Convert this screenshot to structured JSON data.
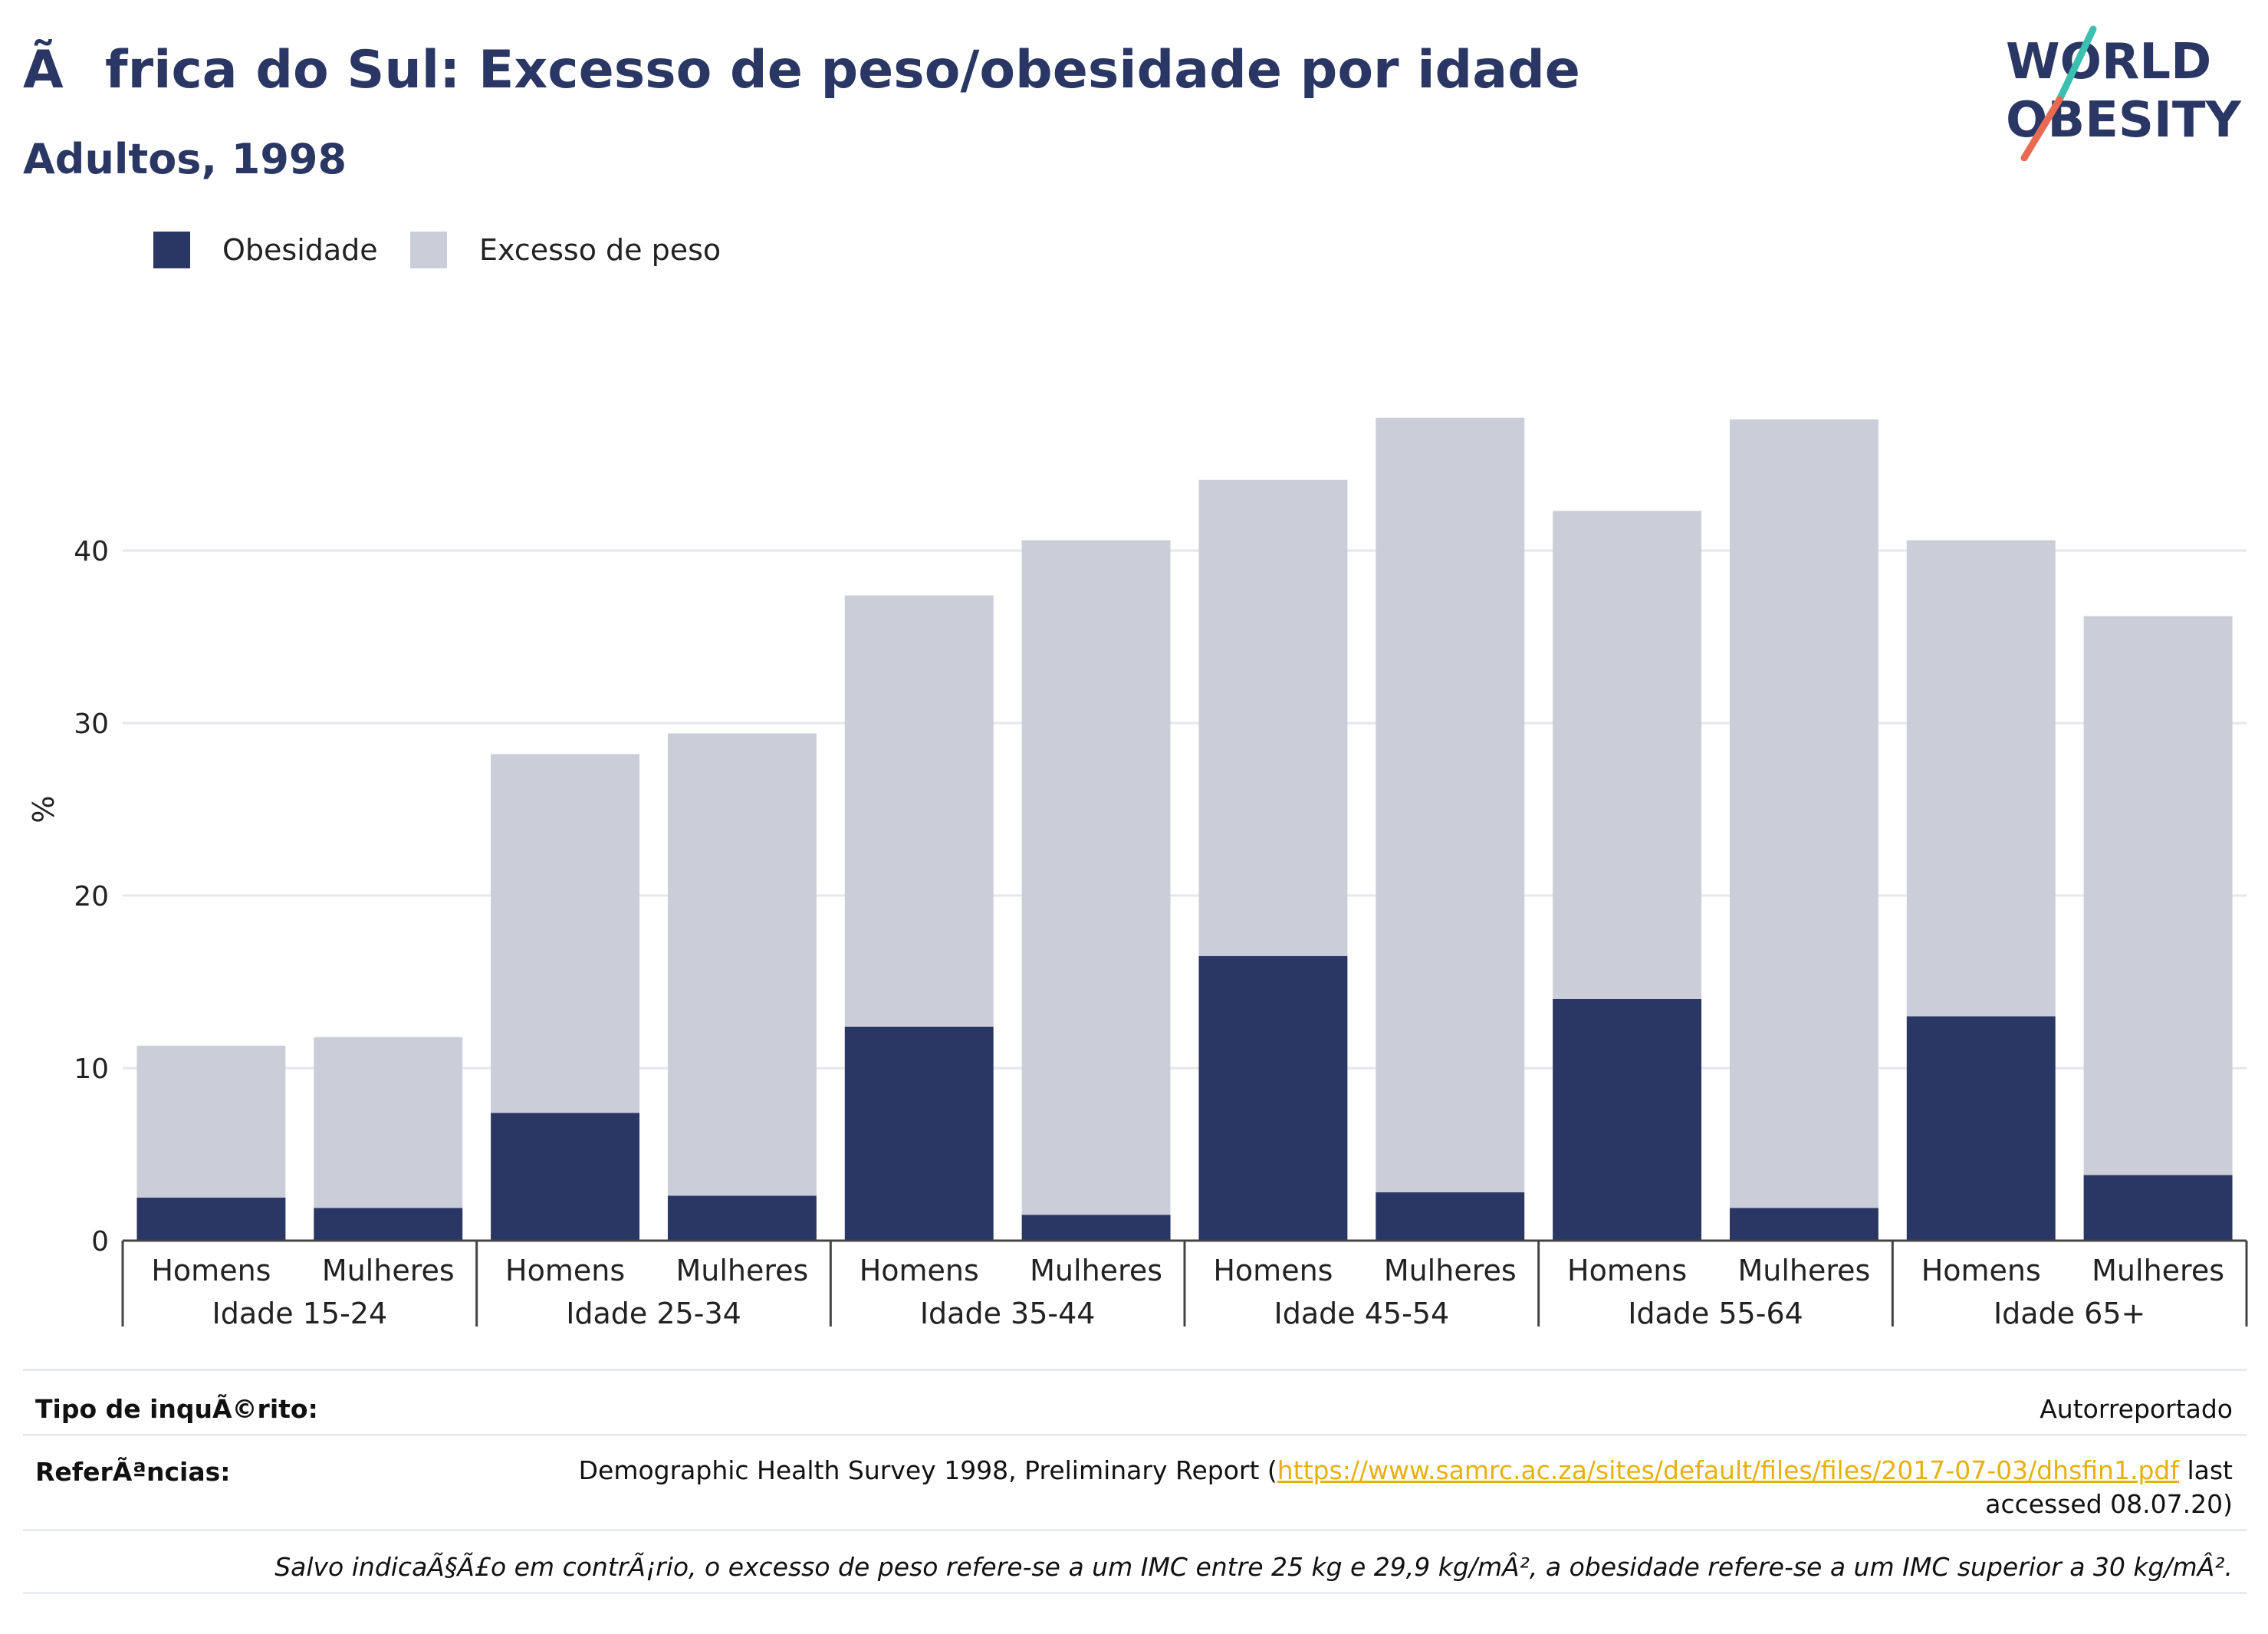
{
  "header": {
    "title": "Ãfrica do Sul: Excesso de peso/obesidade por idade",
    "subtitle": "Adultos, 1998"
  },
  "logo": {
    "line1": "WORLD",
    "line2": "OBESITY",
    "accent_colors": [
      "#3bbfb0",
      "#e86a52"
    ]
  },
  "legend": {
    "items": [
      {
        "label": "Obesidade",
        "color": "#2a3663"
      },
      {
        "label": "Excesso de peso",
        "color": "#cbcdd9"
      }
    ]
  },
  "chart_data": {
    "type": "bar",
    "stacked": true,
    "ylabel": "%",
    "ylim": [
      0,
      50
    ],
    "yticks": [
      0,
      10,
      20,
      30,
      40
    ],
    "grid": true,
    "legend_position": "top-left",
    "groups": [
      "Idade 15-24",
      "Idade 25-34",
      "Idade 35-44",
      "Idade 45-54",
      "Idade 55-64",
      "Idade 65+"
    ],
    "subcategories": [
      "Homens",
      "Mulheres"
    ],
    "series": [
      {
        "name": "Obesidade",
        "color": "#2a3663",
        "values": [
          2.5,
          1.9,
          7.4,
          2.6,
          12.4,
          1.5,
          16.5,
          2.8,
          14.0,
          1.9,
          13.0,
          3.8
        ]
      },
      {
        "name": "Excesso de peso",
        "color": "#cbcdd9",
        "values": [
          8.8,
          9.9,
          20.8,
          26.8,
          25.0,
          39.1,
          27.6,
          44.9,
          28.3,
          45.7,
          27.6,
          32.4
        ]
      }
    ]
  },
  "footer": {
    "survey_label": "Tipo de inquÃ©rito:",
    "survey_value": "Autorreportado",
    "references_label": "ReferÃªncias:",
    "references_prefix": "Demographic Health Survey 1998, Preliminary Report (",
    "references_link": "https://www.samrc.ac.za/sites/default/files/files/2017-07-03/dhsfin1.pdf",
    "references_suffix": " last accessed 08.07.20)",
    "note": "Salvo indicaÃ§Ã£o em contrÃ¡rio, o excesso de peso refere-se a um IMC entre 25 kg e 29,9 kg/mÂ², a obesidade refere-se a um IMC superior a 30 kg/mÂ²."
  }
}
